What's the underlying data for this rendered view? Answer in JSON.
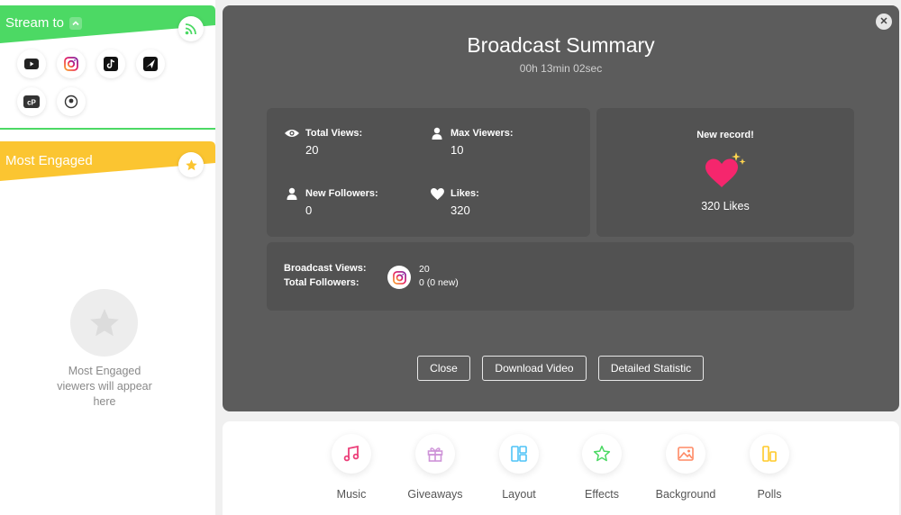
{
  "sidebar": {
    "stream_title": "Stream to",
    "platforms": [
      {
        "name": "youtube-icon"
      },
      {
        "name": "instagram-icon"
      },
      {
        "name": "tiktok-icon"
      },
      {
        "name": "send-icon"
      },
      {
        "name": "chat-app-icon"
      },
      {
        "name": "periscope-icon"
      }
    ],
    "engaged_title": "Most Engaged",
    "engaged_empty": "Most Engaged viewers will appear here"
  },
  "modal": {
    "title": "Broadcast Summary",
    "duration": "00h 13min 02sec",
    "stats": {
      "total_views_label": "Total Views:",
      "total_views_value": "20",
      "max_viewers_label": "Max Viewers:",
      "max_viewers_value": "10",
      "new_followers_label": "New Followers:",
      "new_followers_value": "0",
      "likes_label": "Likes:",
      "likes_value": "320"
    },
    "record": {
      "title": "New record!",
      "likes": "320 Likes"
    },
    "broadcast": {
      "views_label": "Broadcast Views:",
      "followers_label": "Total Followers:",
      "views_value": "20",
      "followers_value": "0 (0 new)"
    },
    "buttons": {
      "close": "Close",
      "download": "Download Video",
      "detailed": "Detailed Statistic"
    }
  },
  "toolbar": {
    "items": [
      {
        "label": "Music"
      },
      {
        "label": "Giveaways"
      },
      {
        "label": "Layout"
      },
      {
        "label": "Effects"
      },
      {
        "label": "Background"
      },
      {
        "label": "Polls"
      }
    ]
  },
  "colors": {
    "stream_green": "#4cd964",
    "engaged_yellow": "#fbc531",
    "modal_bg": "#5c5c5c",
    "heart_pink": "#f5266d"
  }
}
